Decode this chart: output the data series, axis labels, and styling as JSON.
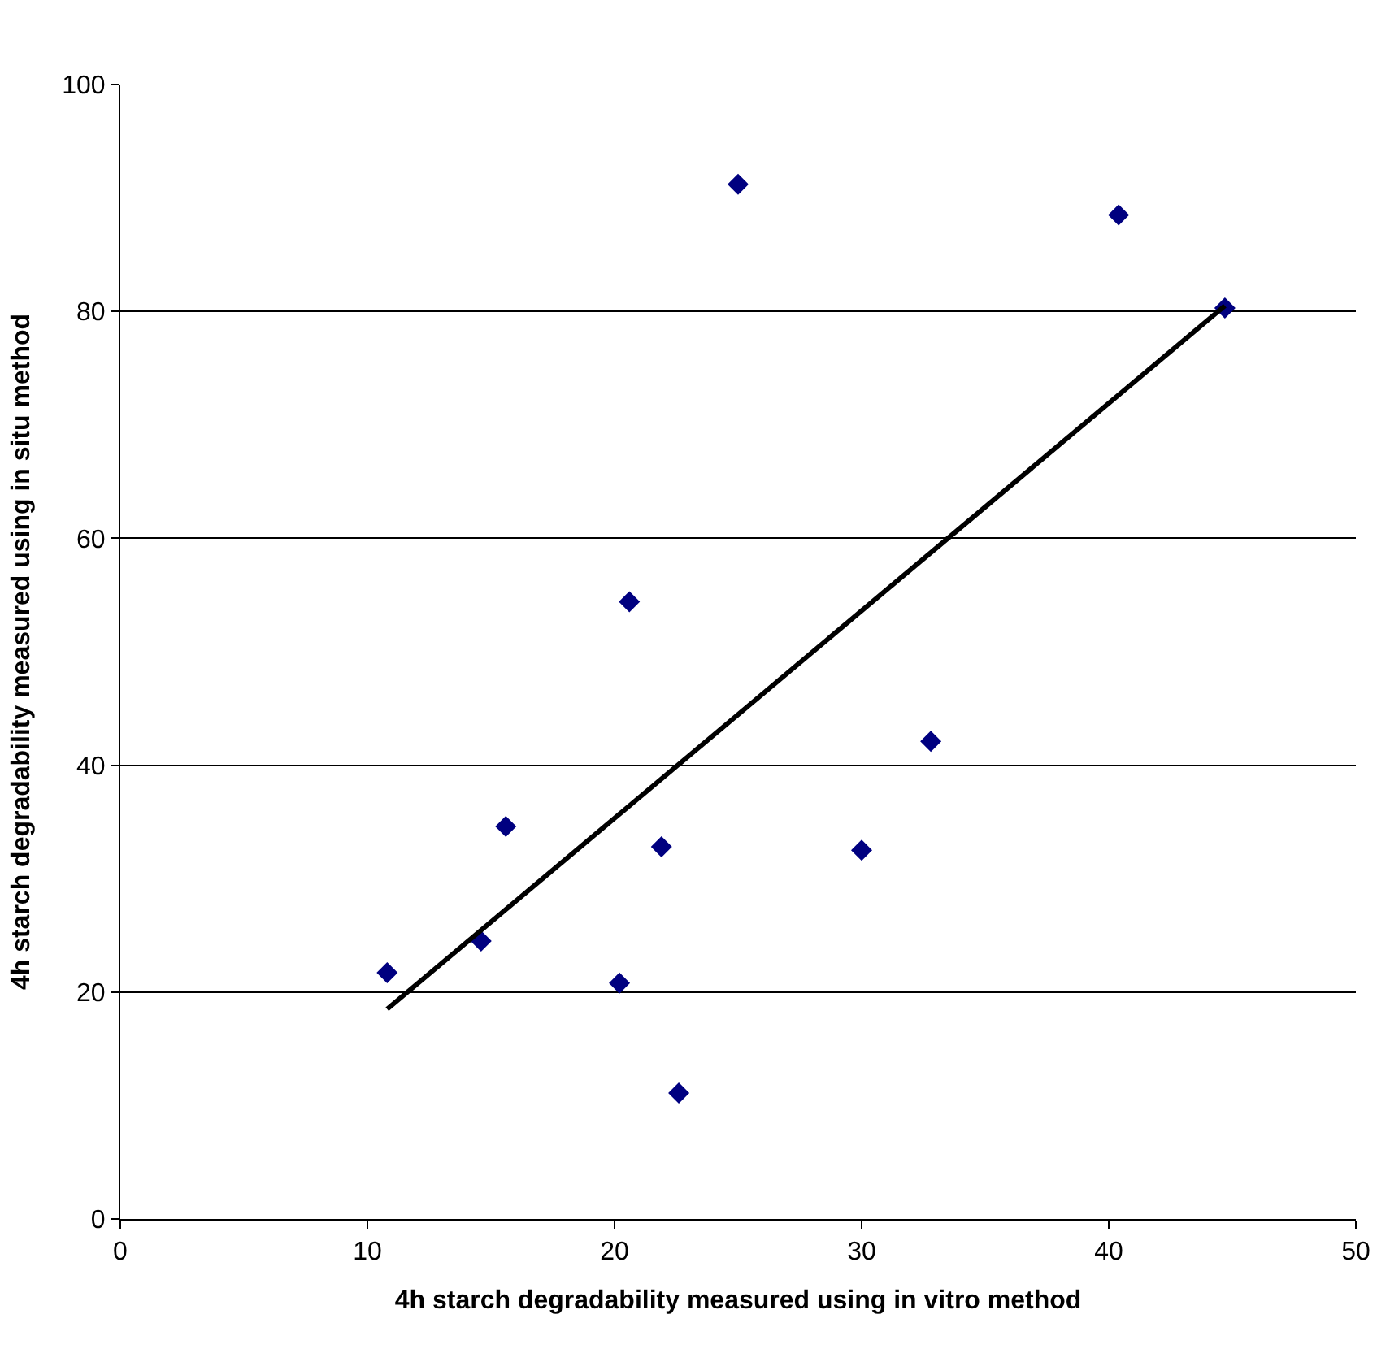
{
  "chart_data": {
    "type": "scatter",
    "xlabel": "4h starch degradability measured using in vitro method",
    "ylabel": "4h starch degradability measured using in situ method",
    "series": [
      {
        "color": "#000080",
        "marker": "diamond",
        "x": [
          10.8,
          14.6,
          15.6,
          20.2,
          20.6,
          21.9,
          22.6,
          25.0,
          30.0,
          32.8,
          40.4,
          44.7
        ],
        "values": [
          21.7,
          24.5,
          34.6,
          20.8,
          54.4,
          32.8,
          11.1,
          91.2,
          32.5,
          42.1,
          88.5,
          80.3
        ]
      },
      {
        "type": "line",
        "color": "#000000",
        "marker": "none",
        "line_style": "solid",
        "x": [
          10.8,
          44.7
        ],
        "values": [
          18.5,
          80.5
        ]
      }
    ],
    "xlim": [
      0,
      50
    ],
    "xticks": [
      0,
      10,
      20,
      30,
      40,
      50
    ],
    "ylim": [
      0,
      100
    ],
    "yticks": [
      0,
      20,
      40,
      60,
      80,
      100
    ],
    "grid": "y"
  }
}
